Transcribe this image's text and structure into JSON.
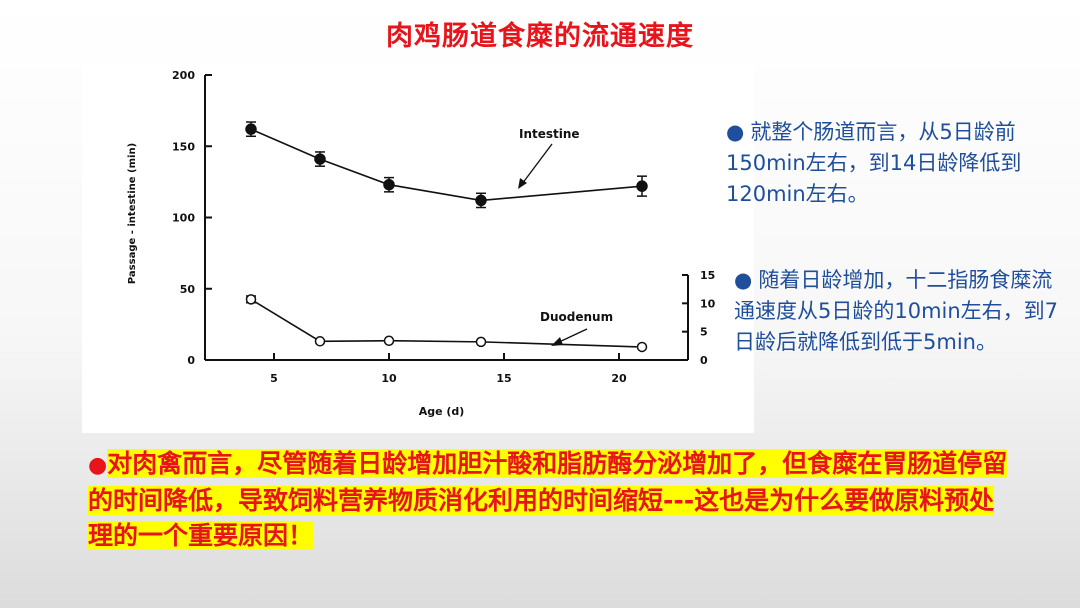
{
  "slide": {
    "title": "肉鸡肠道食糜的流通速度",
    "note1": "就整个肠道而言，从5日龄前150min左右，到14日龄降低到120min左右。",
    "note2": "随着日龄增加，十二指肠食糜流通速度从5日龄的10min左右，到7日龄后就降低到低于5min。",
    "bottom_note": "对肉禽而言，尽管随着日龄增加胆汁酸和脂肪酶分泌增加了，但食糜在胃肠道停留的时间降低，导致饲料营养物质消化利用的时间缩短---这也是为什么要做原料预处理的一个重要原因！",
    "bullet": "●"
  },
  "colors": {
    "title_red": "#e8141b",
    "note_blue": "#1f4e9c",
    "highlight_yellow": "#ffff00",
    "ink": "#111111"
  },
  "chart_data": {
    "type": "line",
    "xlabel": "Age (d)",
    "ylabel_left": "Passage - intestine (min)",
    "xlim": [
      2,
      23
    ],
    "ylim_left": [
      0,
      200
    ],
    "ylim_right": [
      0,
      15
    ],
    "x_ticks": [
      5,
      10,
      15,
      20
    ],
    "y_ticks_left": [
      0,
      50,
      100,
      150,
      200
    ],
    "y_ticks_right": [
      0,
      5,
      10,
      15
    ],
    "grid": false,
    "series": [
      {
        "name": "Intestine",
        "axis": "left",
        "marker": "filled-circle",
        "x": [
          4,
          7,
          10,
          14,
          21
        ],
        "y": [
          162,
          141,
          123,
          112,
          122
        ],
        "err": [
          5,
          5,
          5,
          5,
          7
        ]
      },
      {
        "name": "Duodenum",
        "axis": "right",
        "marker": "open-circle",
        "x": [
          4,
          7,
          10,
          14,
          21
        ],
        "y": [
          10.7,
          3.3,
          3.4,
          3.2,
          2.3
        ],
        "err": [
          0.6,
          0,
          0,
          0,
          0
        ]
      }
    ]
  }
}
